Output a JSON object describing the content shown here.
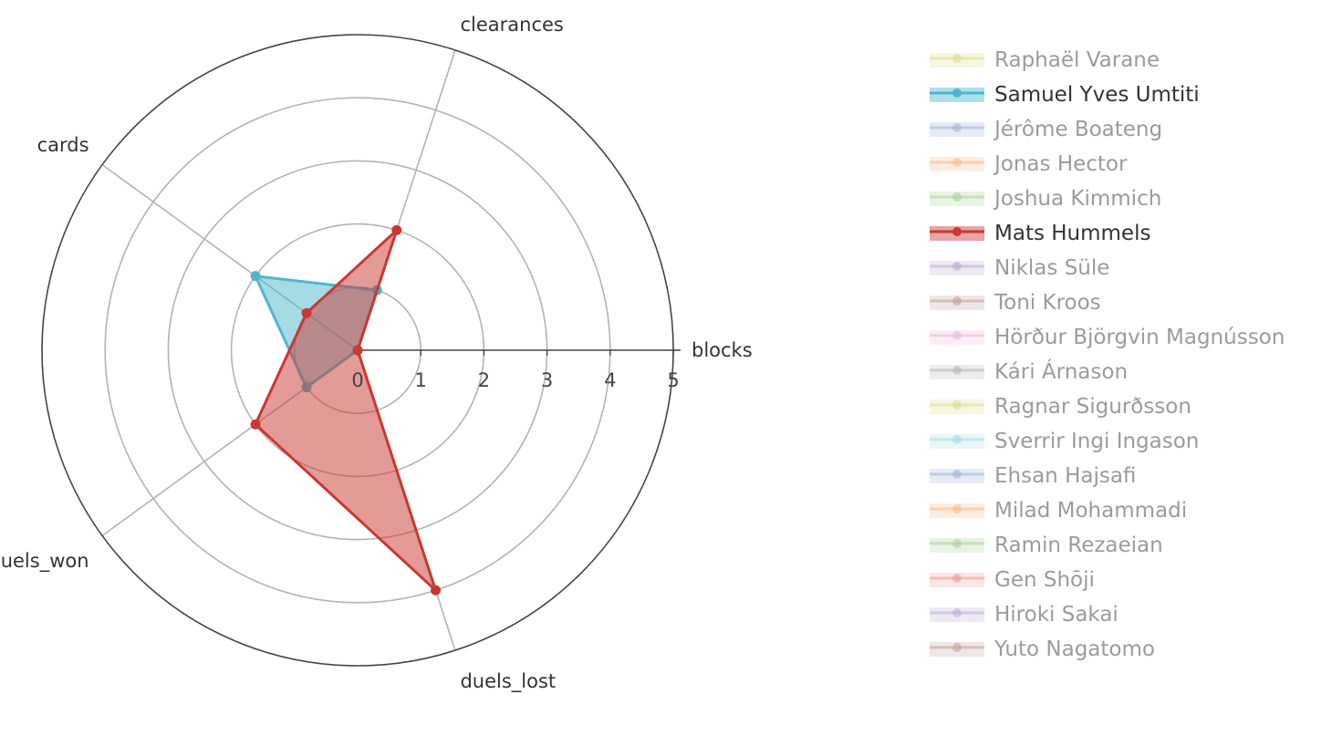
{
  "chart_data": {
    "type": "radar",
    "axes": [
      "blocks",
      "clearances",
      "cards",
      "duels_won",
      "duels_lost"
    ],
    "radial_range": [
      0,
      5
    ],
    "radial_ticks": [
      "0",
      "1",
      "2",
      "3",
      "4",
      "5"
    ],
    "grid": true,
    "legend_position": "right",
    "series": [
      {
        "name": "Raphaël Varane",
        "color": "#dbdb8d",
        "visible": false,
        "values": []
      },
      {
        "name": "Samuel Yves Umtiti",
        "color": "#4db8cc",
        "visible": true,
        "values": [
          0,
          1,
          2,
          1,
          0
        ]
      },
      {
        "name": "Jérôme Boateng",
        "color": "#9ab4d6",
        "visible": false,
        "values": []
      },
      {
        "name": "Jonas Hector",
        "color": "#f6b889",
        "visible": false,
        "values": []
      },
      {
        "name": "Joshua Kimmich",
        "color": "#a5cf95",
        "visible": false,
        "values": []
      },
      {
        "name": "Mats Hummels",
        "color": "#c93832",
        "visible": true,
        "values": [
          0,
          2,
          1,
          2,
          4
        ]
      },
      {
        "name": "Niklas Süle",
        "color": "#bbaad3",
        "visible": false,
        "values": []
      },
      {
        "name": "Toni Kroos",
        "color": "#bf9c98",
        "visible": false,
        "values": []
      },
      {
        "name": "Hörður Björgvin Magnússon",
        "color": "#eeb5d7",
        "visible": false,
        "values": []
      },
      {
        "name": "Kári Árnason",
        "color": "#b5b5b5",
        "visible": false,
        "values": []
      },
      {
        "name": "Ragnar Sigurðsson",
        "color": "#dbdb8d",
        "visible": false,
        "values": []
      },
      {
        "name": "Sverrir Ingi Ingason",
        "color": "#a3d9e3",
        "visible": false,
        "values": []
      },
      {
        "name": "Ehsan Hajsafi",
        "color": "#9ab4d6",
        "visible": false,
        "values": []
      },
      {
        "name": "Milad Mohammadi",
        "color": "#f6b889",
        "visible": false,
        "values": []
      },
      {
        "name": "Ramin Rezaeian",
        "color": "#a5cf95",
        "visible": false,
        "values": []
      },
      {
        "name": "Gen Shōji",
        "color": "#e99a94",
        "visible": false,
        "values": []
      },
      {
        "name": "Hiroki Sakai",
        "color": "#bbaad3",
        "visible": false,
        "values": []
      },
      {
        "name": "Yuto Nagatomo",
        "color": "#bf9c98",
        "visible": false,
        "values": []
      }
    ]
  }
}
